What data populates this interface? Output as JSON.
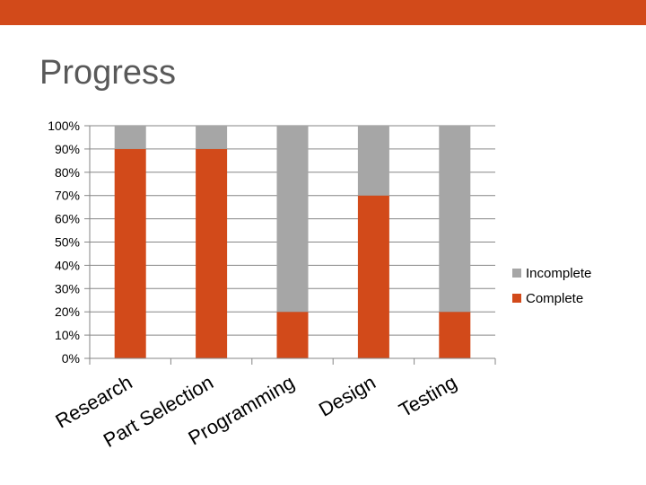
{
  "slide": {
    "title": "Progress",
    "accent": "#d24a1a"
  },
  "chart_data": {
    "type": "bar",
    "stacked": true,
    "percent": true,
    "categories": [
      "Research",
      "Part Selection",
      "Programming",
      "Design",
      "Testing"
    ],
    "series": [
      {
        "name": "Complete",
        "color": "#d24a1a",
        "values": [
          90,
          90,
          20,
          70,
          20
        ]
      },
      {
        "name": "Incomplete",
        "color": "#a6a6a6",
        "values": [
          10,
          10,
          80,
          30,
          80
        ]
      }
    ],
    "yticks": [
      "0%",
      "10%",
      "20%",
      "30%",
      "40%",
      "50%",
      "60%",
      "70%",
      "80%",
      "90%",
      "100%"
    ],
    "ylim": [
      0,
      100
    ],
    "grid": true,
    "legend": "right"
  }
}
